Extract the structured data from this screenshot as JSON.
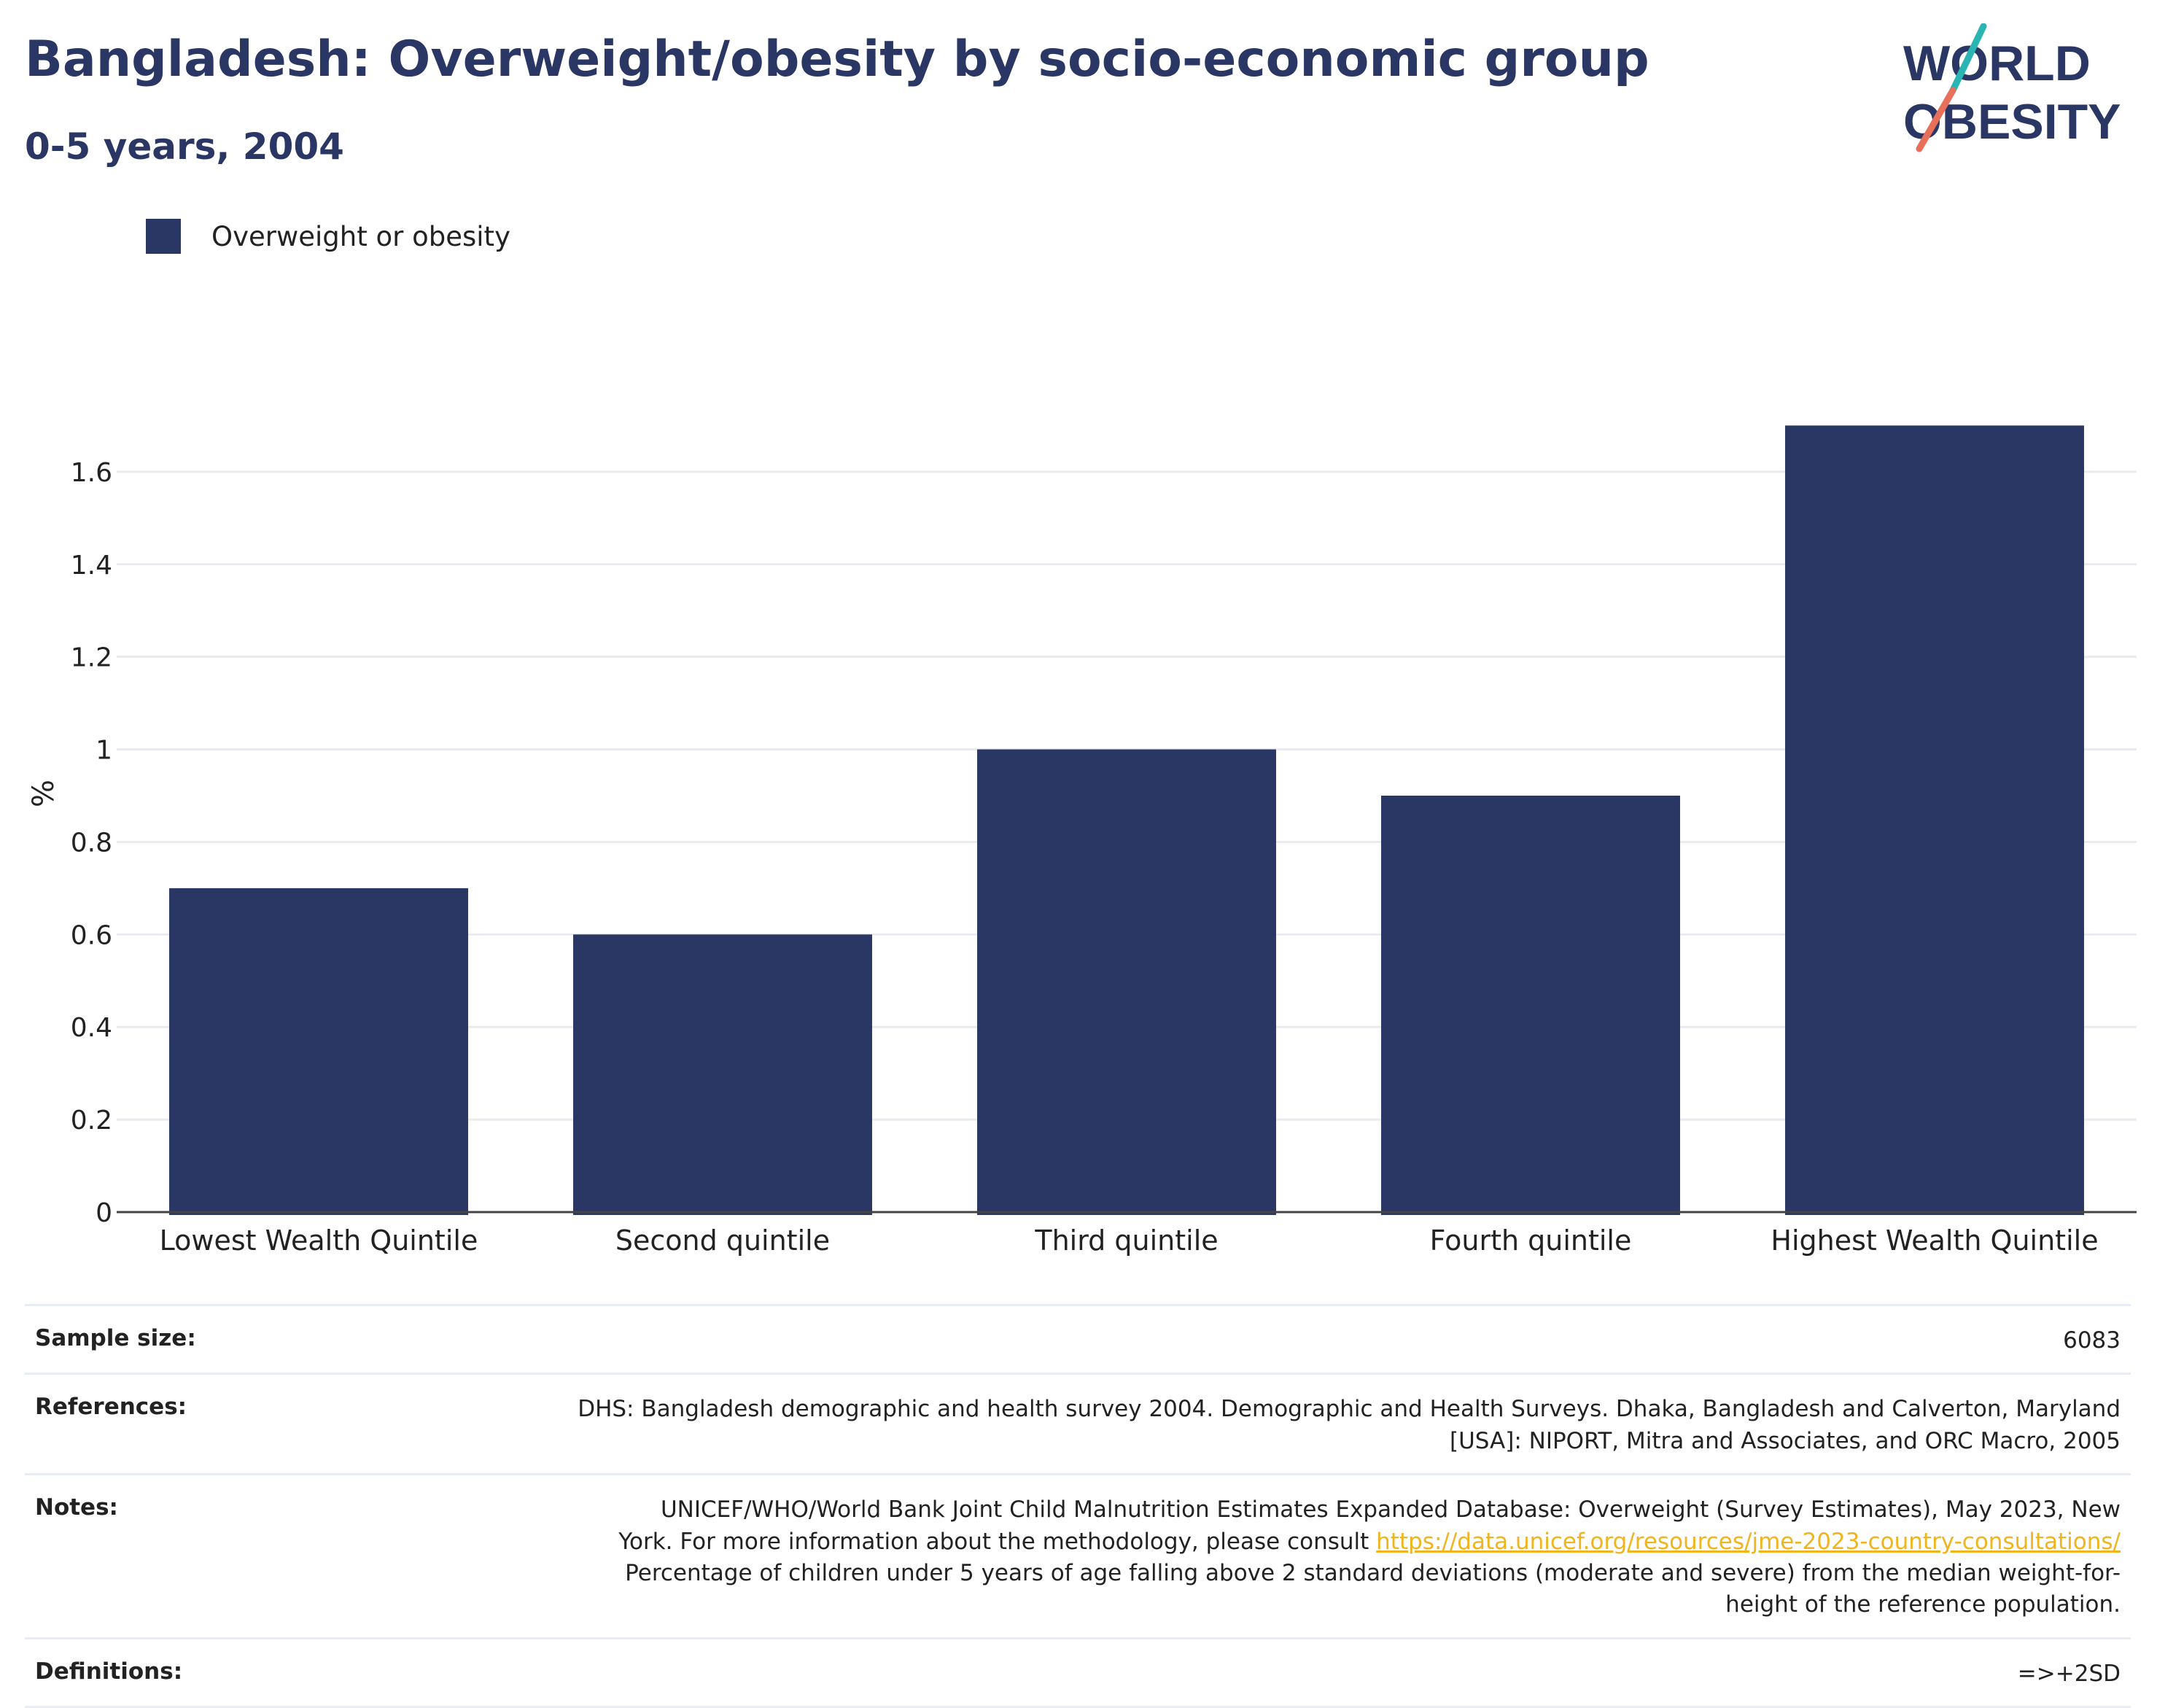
{
  "header": {
    "title": "Bangladesh: Overweight/obesity by socio-economic group",
    "subtitle": "0-5 years, 2004"
  },
  "logo": {
    "line1": "WORLD",
    "line2": "OBESITY",
    "colors": {
      "text": "#2a3663",
      "slash_top": "#2bb5b2",
      "slash_bottom": "#e8705a"
    }
  },
  "legend": {
    "label": "Overweight or obesity",
    "color": "#2a3663"
  },
  "chart_data": {
    "type": "bar",
    "categories": [
      "Lowest Wealth Quintile",
      "Second quintile",
      "Third quintile",
      "Fourth quintile",
      "Highest Wealth Quintile"
    ],
    "series": [
      {
        "name": "Overweight or obesity",
        "values": [
          0.7,
          0.6,
          1.0,
          0.9,
          1.7
        ],
        "color": "#2a3663"
      }
    ],
    "ylabel": "%",
    "ylim": [
      0,
      1.8
    ],
    "yticks": [
      0,
      0.2,
      0.4,
      0.6,
      0.8,
      1,
      1.2,
      1.4,
      1.6
    ],
    "ytick_labels": [
      "0",
      "0.2",
      "0.4",
      "0.6",
      "0.8",
      "1",
      "1.2",
      "1.4",
      "1.6"
    ],
    "grid": true,
    "legend_position": "top-left"
  },
  "info": {
    "sample_size": {
      "label": "Sample size:",
      "value": "6083"
    },
    "references": {
      "label": "References:",
      "line1": "DHS: Bangladesh demographic and health survey 2004. Demographic and Health Surveys. Dhaka, Bangladesh and Calverton, Maryland",
      "line2": "[USA]: NIPORT, Mitra and Associates, and ORC Macro, 2005"
    },
    "notes": {
      "label": "Notes:",
      "line1": "UNICEF/WHO/World Bank Joint Child Malnutrition Estimates Expanded Database: Overweight (Survey Estimates), May 2023, New",
      "line2_pre": "York. For more information about the methodology, please consult",
      "link": "https://data.unicef.org/resources/jme-2023-country-consultations/",
      "line3": "Percentage of children under 5 years of age falling above 2 standard deviations (moderate and severe) from the median weight-for-",
      "line4": "height of the reference population."
    },
    "definitions": {
      "label": "Definitions:",
      "value": "=>+2SD"
    }
  }
}
